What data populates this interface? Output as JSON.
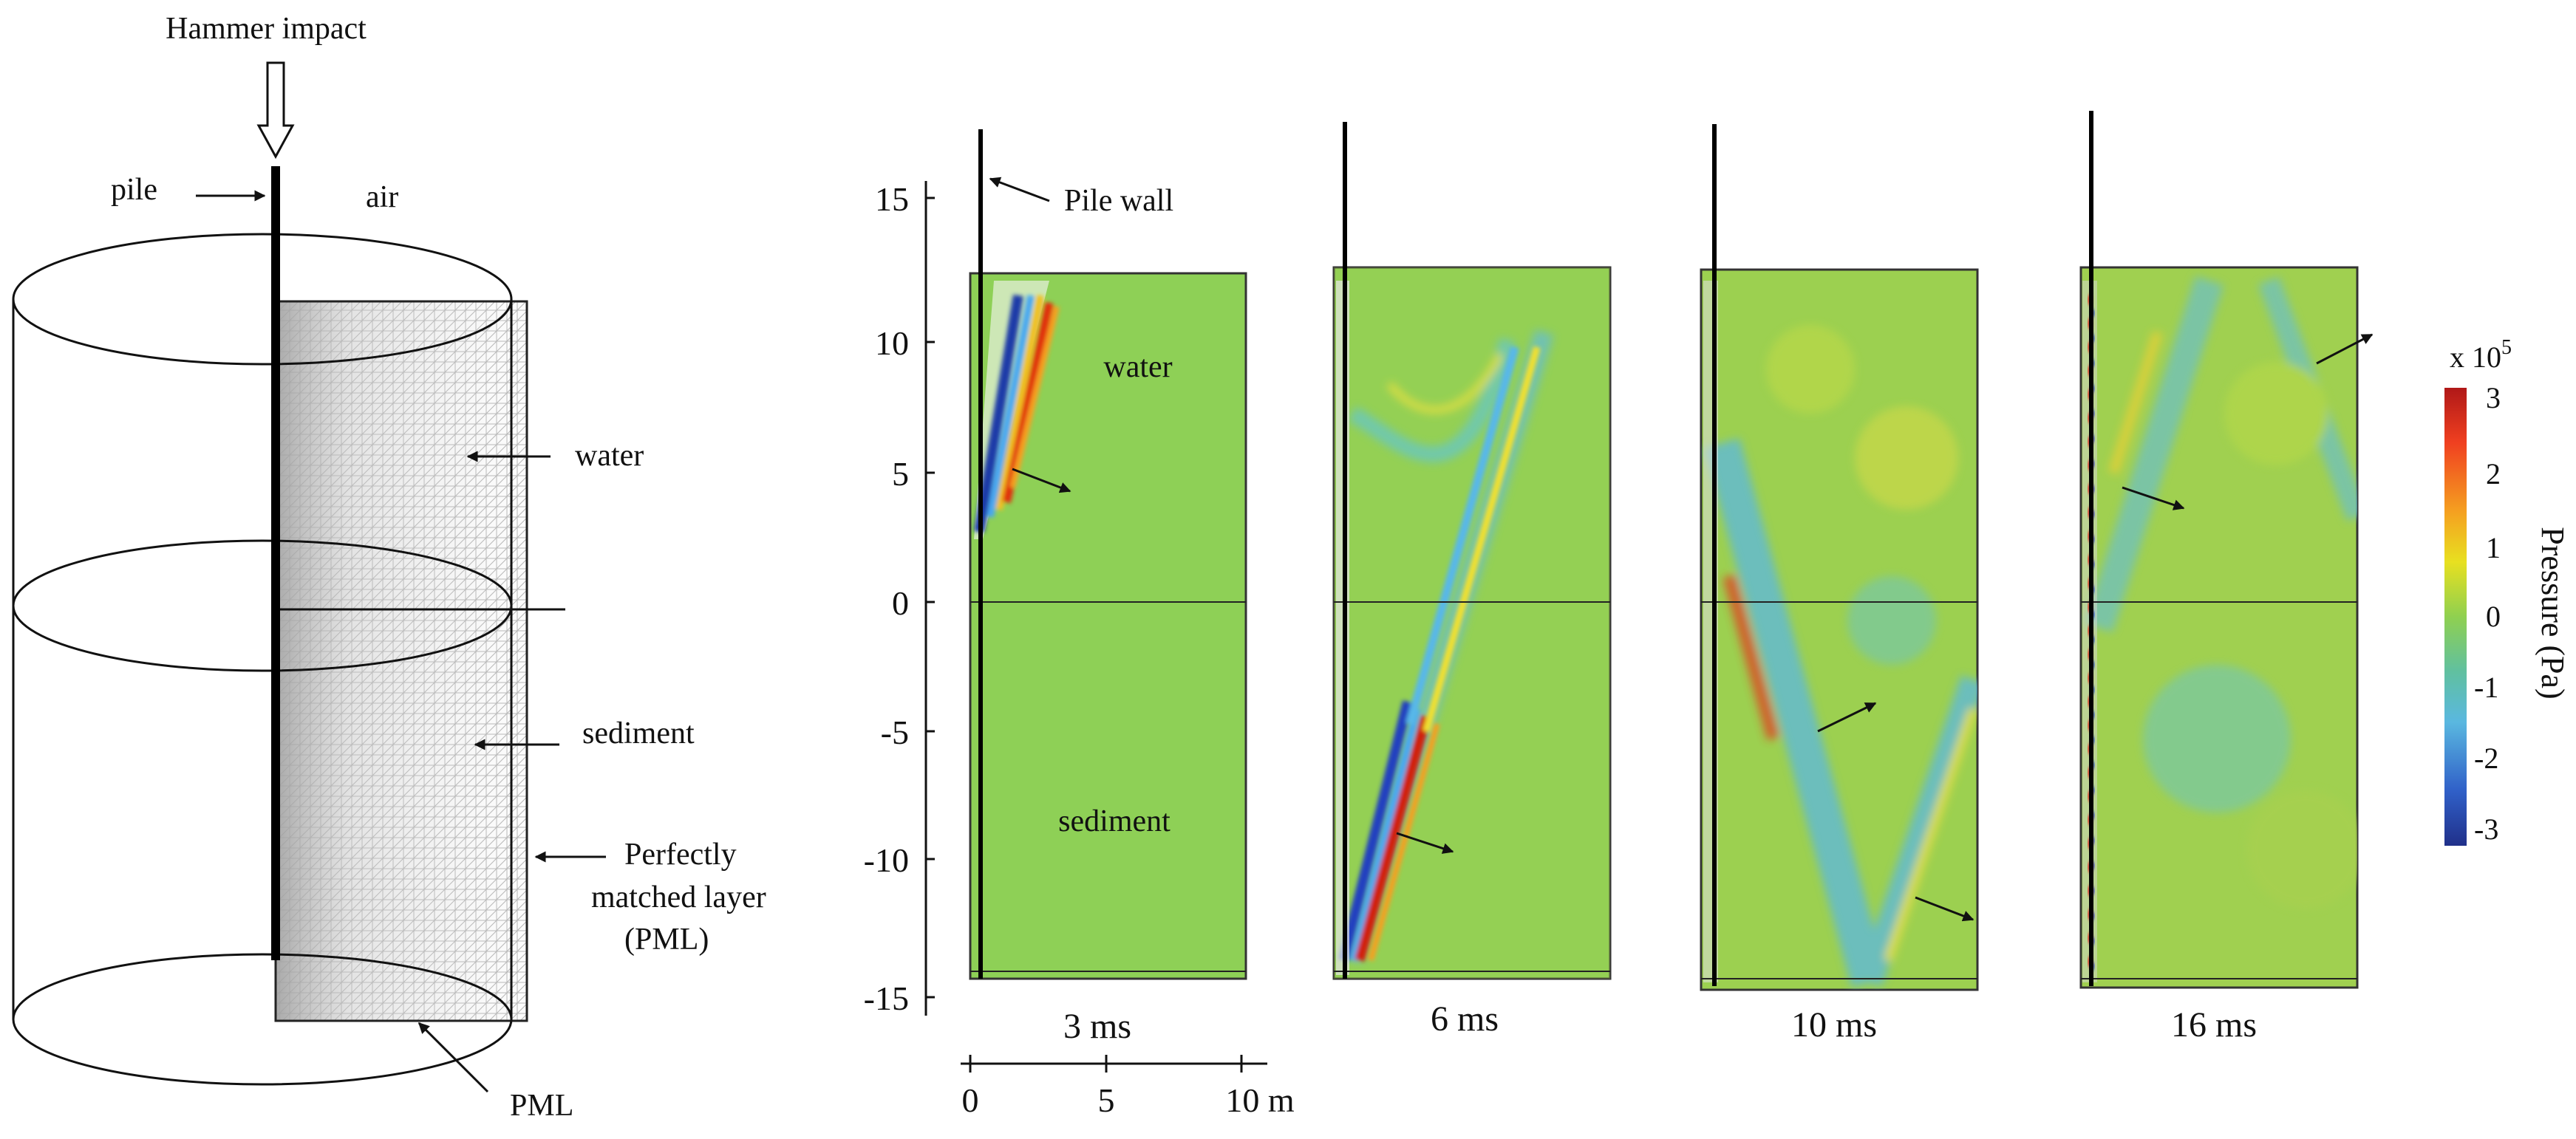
{
  "schematic": {
    "hammer_label": "Hammer impact",
    "pile_label": "pile",
    "air_label": "air",
    "water_label": "water",
    "sediment_label": "sediment",
    "pml_side_label_lines": [
      "Perfectly",
      "matched layer",
      "(PML)"
    ],
    "pml_bottom_label": "PML"
  },
  "snapshots": {
    "y_axis_ticks": [
      "15",
      "10",
      "5",
      "0",
      "-5",
      "-10",
      "-15"
    ],
    "x_axis_ticks": [
      "0",
      "5",
      "10 m"
    ],
    "pile_wall_label": "Pile wall",
    "water_label": "water",
    "sediment_label": "sediment",
    "panel_times": [
      "3 ms",
      "6 ms",
      "10 ms",
      "16 ms"
    ]
  },
  "colorbar": {
    "multiplier_base": "x 10",
    "multiplier_exp": "5",
    "ticks": [
      "3",
      "2",
      "1",
      "0",
      "-1",
      "-2",
      "-3"
    ],
    "label": "Pressure (Pa)",
    "colors": [
      "#b01818",
      "#f04020",
      "#f5a020",
      "#e8e020",
      "#8fd050",
      "#60c0a0",
      "#5ab8e0",
      "#3060c8",
      "#20308a"
    ]
  }
}
